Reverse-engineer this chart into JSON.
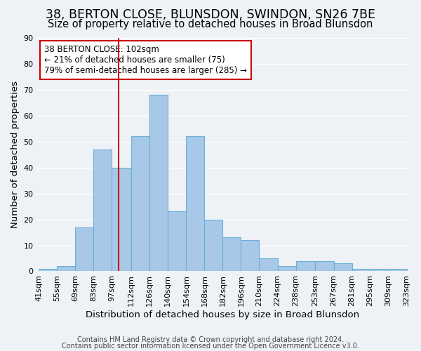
{
  "title": "38, BERTON CLOSE, BLUNSDON, SWINDON, SN26 7BE",
  "subtitle": "Size of property relative to detached houses in Broad Blunsdon",
  "xlabel": "Distribution of detached houses by size in Broad Blunsdon",
  "ylabel": "Number of detached properties",
  "bar_edges": [
    41,
    55,
    69,
    83,
    97,
    112,
    126,
    140,
    154,
    168,
    182,
    196,
    210,
    224,
    238,
    253,
    267,
    281,
    295,
    309,
    323
  ],
  "bar_heights": [
    1,
    2,
    17,
    47,
    40,
    52,
    68,
    23,
    52,
    20,
    13,
    12,
    5,
    2,
    4,
    4,
    3,
    1,
    1,
    1
  ],
  "bar_color": "#a8c8e8",
  "bar_edge_color": "#6aafd6",
  "vline_x": 102,
  "vline_color": "#cc0000",
  "ylim": [
    0,
    90
  ],
  "yticks": [
    0,
    10,
    20,
    30,
    40,
    50,
    60,
    70,
    80,
    90
  ],
  "annotation_title": "38 BERTON CLOSE: 102sqm",
  "annotation_line1": "← 21% of detached houses are smaller (75)",
  "annotation_line2": "79% of semi-detached houses are larger (285) →",
  "footer1": "Contains HM Land Registry data © Crown copyright and database right 2024.",
  "footer2": "Contains public sector information licensed under the Open Government Licence v3.0.",
  "bg_color": "#eef2f7",
  "grid_color": "#ffffff",
  "title_fontsize": 12.5,
  "subtitle_fontsize": 10.5,
  "axis_label_fontsize": 9.5,
  "tick_fontsize": 8,
  "annotation_fontsize": 8.5,
  "footer_fontsize": 7
}
